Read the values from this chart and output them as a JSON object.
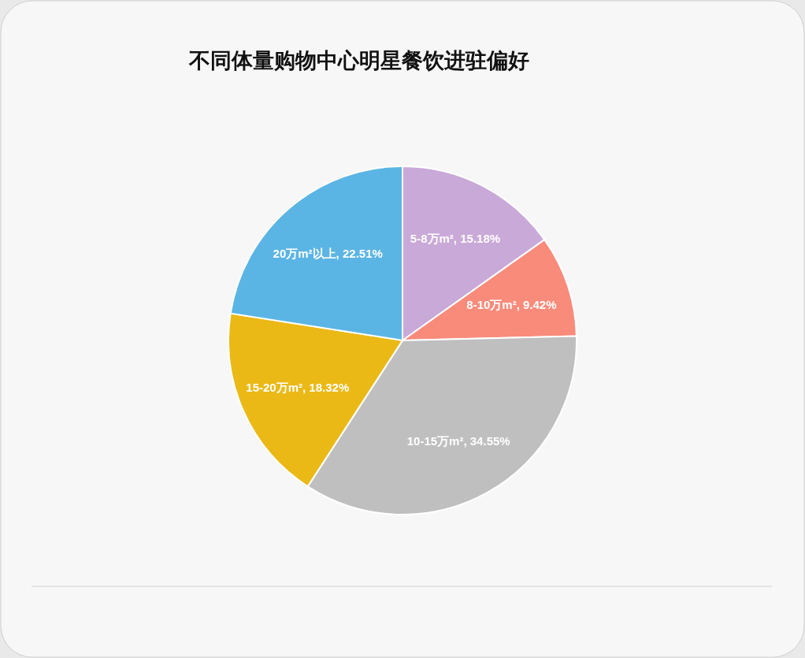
{
  "chart_data": {
    "type": "pie",
    "title": "不同体量购物中心明星餐饮进驻偏好",
    "categories": [
      "5-8万m²",
      "8-10万m²",
      "10-15万m²",
      "15-20万m²",
      "20万m²以上"
    ],
    "values": [
      15.18,
      9.42,
      34.55,
      18.32,
      22.51
    ],
    "value_labels": [
      "15.18%",
      "9.42%",
      "34.55%",
      "18.32%",
      "22.51%"
    ],
    "colors": [
      "#c9a9d8",
      "#f98b7b",
      "#bfbfbf",
      "#ebb916",
      "#5bb5e4"
    ]
  }
}
